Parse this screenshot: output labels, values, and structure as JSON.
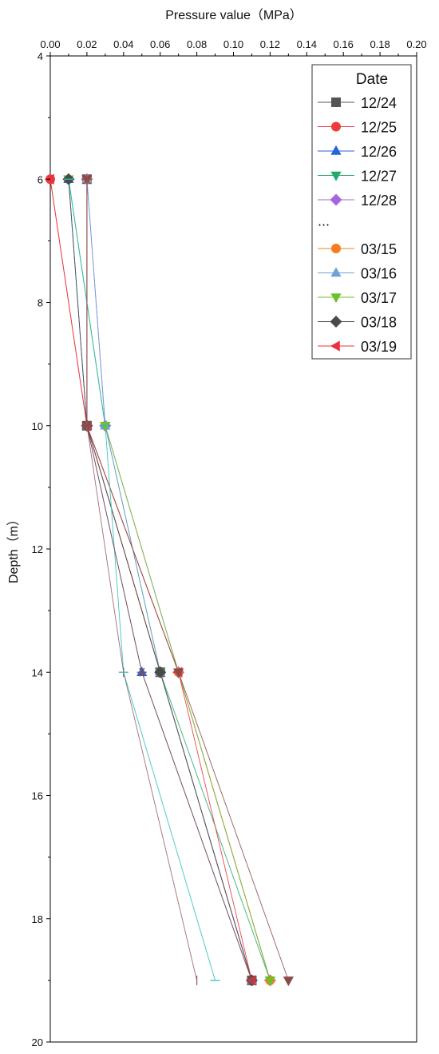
{
  "chart_data": {
    "type": "line",
    "xlabel": "Pressure value（MPa）",
    "ylabel": "Depth（m）",
    "xlim": [
      0,
      0.2
    ],
    "ylim": [
      4,
      20
    ],
    "y_inverted": true,
    "x_axis_position": "top",
    "xticks": [
      "0.00",
      "0.02",
      "0.04",
      "0.06",
      "0.08",
      "0.10",
      "0.12",
      "0.14",
      "0.16",
      "0.18",
      "0.20"
    ],
    "yticks": [
      "4",
      "6",
      "8",
      "10",
      "12",
      "14",
      "16",
      "18",
      "20"
    ],
    "grid": false,
    "legend_position": "top-right",
    "legend_title": "Date",
    "legend_ellipsis": "...",
    "y": [
      6,
      10,
      14,
      19
    ],
    "series": [
      {
        "name": "12/24",
        "color": "#555555",
        "marker": "square",
        "values": [
          0.02,
          0.02,
          0.06,
          0.11
        ]
      },
      {
        "name": "12/25",
        "color": "#ee3b3b",
        "marker": "circle",
        "values": [
          0.0,
          0.02,
          0.06,
          0.11
        ]
      },
      {
        "name": "12/26",
        "color": "#2266dd",
        "marker": "triangle-up",
        "values": [
          0.01,
          0.02,
          0.05,
          0.11
        ]
      },
      {
        "name": "12/27",
        "color": "#22aa66",
        "marker": "triangle-down",
        "values": [
          0.01,
          0.03,
          0.06,
          0.12
        ]
      },
      {
        "name": "12/28",
        "color": "#a566dd",
        "marker": "diamond",
        "values": [
          0.02,
          0.03,
          0.07,
          0.12
        ]
      },
      {
        "name": "03/15",
        "color": "#f57c1f",
        "marker": "circle",
        "values": [
          0.02,
          0.02,
          0.07,
          0.12
        ]
      },
      {
        "name": "03/16",
        "color": "#6fa0d8",
        "marker": "triangle-up",
        "values": [
          0.02,
          0.03,
          0.06,
          0.11
        ]
      },
      {
        "name": "03/17",
        "color": "#6fbf2a",
        "marker": "triangle-down",
        "values": [
          0.01,
          0.03,
          0.07,
          0.12
        ]
      },
      {
        "name": "03/18",
        "color": "#4a4a4a",
        "marker": "diamond",
        "values": [
          0.01,
          0.02,
          0.06,
          0.11
        ]
      },
      {
        "name": "03/19",
        "color": "#e8333f",
        "marker": "triangle-left",
        "values": [
          0.0,
          0.02,
          0.07,
          0.11
        ]
      },
      {
        "name": "",
        "color": "#8b4a4a",
        "marker": "triangle-down",
        "values": [
          0.02,
          0.02,
          0.07,
          0.13
        ]
      },
      {
        "name": "",
        "color": "#9b5c68",
        "marker": "vline",
        "values": [
          0.02,
          0.02,
          0.04,
          0.08
        ]
      },
      {
        "name": "",
        "color": "#2bbfbf",
        "marker": "hline",
        "values": [
          0.01,
          0.03,
          0.04,
          0.09
        ]
      },
      {
        "name": "",
        "color": "#8b4a4a",
        "marker": "star",
        "values": [
          0.02,
          0.02,
          0.05,
          0.11
        ]
      }
    ]
  }
}
